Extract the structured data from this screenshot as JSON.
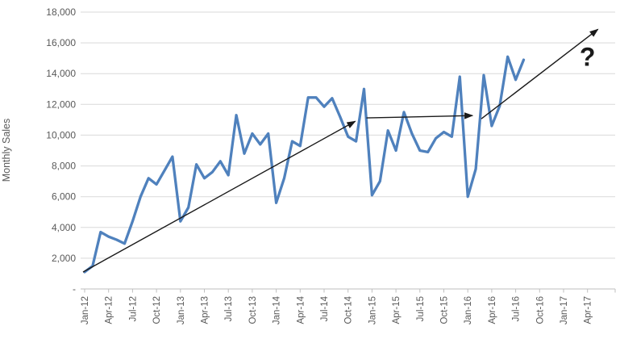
{
  "chart_data": {
    "type": "line",
    "title": "",
    "xlabel": "",
    "ylabel": "Monthly Sales",
    "ylim": [
      0,
      18000
    ],
    "ytick_step": 2000,
    "ytick_labels": [
      "-",
      "2,000",
      "4,000",
      "6,000",
      "8,000",
      "10,000",
      "12,000",
      "14,000",
      "16,000",
      "18,000"
    ],
    "x_tick_labels": [
      "Jan-12",
      "Apr-12",
      "Jul-12",
      "Oct-12",
      "Jan-13",
      "Apr-13",
      "Jul-13",
      "Oct-13",
      "Jan-14",
      "Apr-14",
      "Jul-14",
      "Oct-14",
      "Jan-15",
      "Apr-15",
      "Jul-15",
      "Oct-15",
      "Jan-16",
      "Apr-16",
      "Jul-16",
      "Oct-16",
      "Jan-17",
      "Apr-17"
    ],
    "x_tick_interval_months": 3,
    "grid": true,
    "legend": "none",
    "series": [
      {
        "name": "Monthly Sales",
        "color": "#4F81BD",
        "months": [
          "Jan-12",
          "Feb-12",
          "Mar-12",
          "Apr-12",
          "May-12",
          "Jun-12",
          "Jul-12",
          "Aug-12",
          "Sep-12",
          "Oct-12",
          "Nov-12",
          "Dec-12",
          "Jan-13",
          "Feb-13",
          "Mar-13",
          "Apr-13",
          "May-13",
          "Jun-13",
          "Jul-13",
          "Aug-13",
          "Sep-13",
          "Oct-13",
          "Nov-13",
          "Dec-13",
          "Jan-14",
          "Feb-14",
          "Mar-14",
          "Apr-14",
          "May-14",
          "Jun-14",
          "Jul-14",
          "Aug-14",
          "Sep-14",
          "Oct-14",
          "Nov-14",
          "Dec-14",
          "Jan-15",
          "Feb-15",
          "Mar-15",
          "Apr-15",
          "May-15",
          "Jun-15",
          "Jul-15",
          "Aug-15",
          "Sep-15",
          "Oct-15",
          "Nov-15",
          "Dec-15",
          "Jan-16",
          "Feb-16",
          "Mar-16",
          "Apr-16",
          "May-16",
          "Jun-16",
          "Jul-16",
          "Aug-16"
        ],
        "values": [
          1100,
          1500,
          3700,
          3400,
          3200,
          2950,
          4400,
          6000,
          7200,
          6800,
          7700,
          8600,
          4400,
          5300,
          8100,
          7200,
          7600,
          8300,
          7400,
          11300,
          8800,
          10100,
          9400,
          10100,
          5600,
          7200,
          9600,
          9300,
          12450,
          12450,
          11850,
          12400,
          11200,
          9900,
          9600,
          13000,
          6100,
          7000,
          10300,
          9000,
          11500,
          10100,
          9000,
          8900,
          9800,
          10200,
          9900,
          13800,
          6000,
          7800,
          13900,
          10600,
          11900,
          15100,
          13600,
          14900
        ]
      }
    ],
    "annotations": {
      "arrows": [
        {
          "name": "trend-arrow-rising-1",
          "from_month_value": [
            -0.2,
            1100
          ],
          "to_month_value": [
            33.9,
            10900
          ]
        },
        {
          "name": "trend-arrow-flat",
          "from_month_value": [
            35.3,
            11120
          ],
          "to_month_value": [
            48.6,
            11270
          ]
        },
        {
          "name": "trend-arrow-rising-2",
          "from_month_value": [
            49.7,
            11060
          ],
          "to_month_value": [
            64.3,
            16880
          ]
        }
      ],
      "question_mark": {
        "text": "?",
        "at_month_value": [
          63.0,
          14950
        ]
      }
    },
    "colors": {
      "line": "#4F81BD",
      "grid": "#D9D9D9",
      "axis": "#BFBFBF",
      "tick_text": "#595959",
      "annotation": "#1a1a1a"
    }
  }
}
